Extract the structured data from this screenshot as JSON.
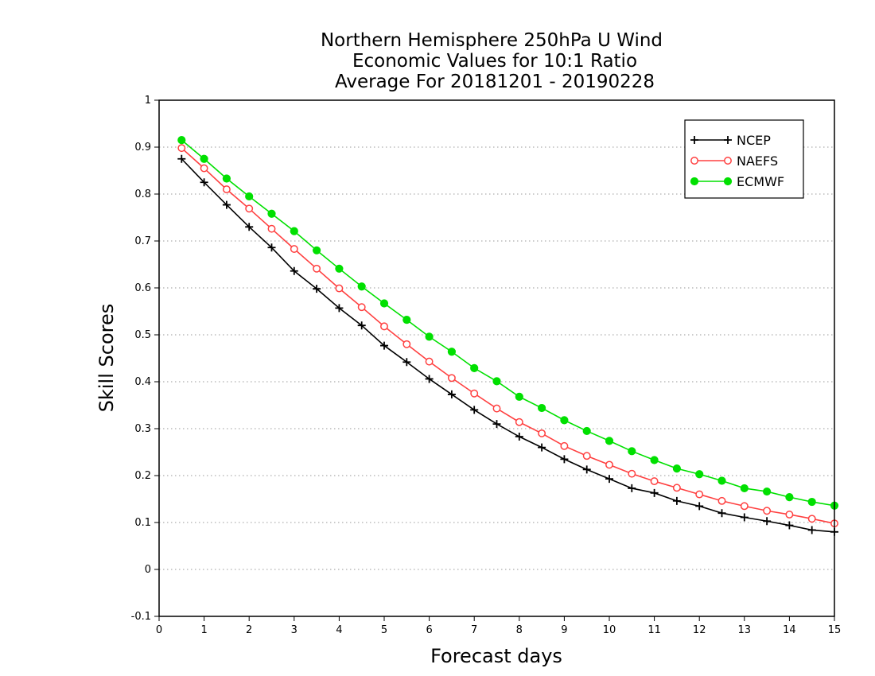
{
  "chart_data": {
    "type": "line",
    "title_lines": [
      "Northern Hemisphere 250hPa U Wind",
      "Economic Values for 10:1 Ratio",
      "Average For 20181201 - 20190228"
    ],
    "xlabel": "Forecast days",
    "ylabel": "Skill Scores",
    "xlim": [
      0,
      15
    ],
    "ylim": [
      -0.1,
      1
    ],
    "xticks": [
      "0",
      "1",
      "2",
      "3",
      "4",
      "5",
      "6",
      "7",
      "8",
      "9",
      "10",
      "11",
      "12",
      "13",
      "14",
      "15"
    ],
    "yticks": [
      "-0.1",
      "0",
      "0.1",
      "0.2",
      "0.3",
      "0.4",
      "0.5",
      "0.6",
      "0.7",
      "0.8",
      "0.9",
      "1"
    ],
    "grid": true,
    "legend_position": "top-right",
    "x": [
      0.5,
      1,
      1.5,
      2,
      2.5,
      3,
      3.5,
      4,
      4.5,
      5,
      5.5,
      6,
      6.5,
      7,
      7.5,
      8,
      8.5,
      9,
      9.5,
      10,
      10.5,
      11,
      11.5,
      12,
      12.5,
      13,
      13.5,
      14,
      14.5,
      15
    ],
    "series": [
      {
        "name": "NCEP",
        "color": "#000000",
        "marker": "plus",
        "values": [
          0.875,
          0.825,
          0.777,
          0.73,
          0.686,
          0.636,
          0.598,
          0.557,
          0.52,
          0.477,
          0.442,
          0.406,
          0.373,
          0.34,
          0.31,
          0.283,
          0.26,
          0.235,
          0.213,
          0.193,
          0.173,
          0.163,
          0.146,
          0.135,
          0.12,
          0.111,
          0.103,
          0.094,
          0.084,
          0.08
        ]
      },
      {
        "name": "NAEFS",
        "color": "#ff4040",
        "marker": "open-circle",
        "values": [
          0.898,
          0.855,
          0.81,
          0.769,
          0.726,
          0.683,
          0.641,
          0.599,
          0.559,
          0.518,
          0.48,
          0.443,
          0.408,
          0.375,
          0.343,
          0.314,
          0.29,
          0.263,
          0.242,
          0.223,
          0.204,
          0.188,
          0.174,
          0.16,
          0.146,
          0.135,
          0.125,
          0.117,
          0.108,
          0.098
        ]
      },
      {
        "name": "ECMWF",
        "color": "#00e000",
        "marker": "filled-circle",
        "values": [
          0.915,
          0.875,
          0.833,
          0.795,
          0.758,
          0.721,
          0.68,
          0.641,
          0.603,
          0.567,
          0.532,
          0.496,
          0.464,
          0.429,
          0.401,
          0.368,
          0.344,
          0.318,
          0.295,
          0.274,
          0.252,
          0.233,
          0.215,
          0.203,
          0.189,
          0.173,
          0.166,
          0.154,
          0.144,
          0.136
        ]
      }
    ]
  }
}
